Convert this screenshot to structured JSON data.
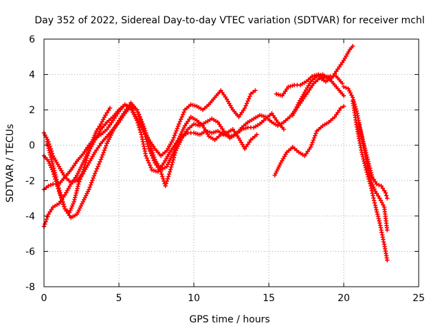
{
  "chart_data": {
    "type": "scatter",
    "title": "Day 352 of 2022, Sidereal Day-to-day VTEC variation (SDTVAR) for receiver mchl",
    "xlabel": "GPS time / hours",
    "ylabel": "SDTVAR / TECUs",
    "xlim": [
      0,
      25
    ],
    "ylim": [
      -8,
      6
    ],
    "xticks": [
      0,
      5,
      10,
      15,
      20,
      25
    ],
    "yticks": [
      -8,
      -6,
      -4,
      -2,
      0,
      2,
      4,
      6
    ],
    "grid": true,
    "marker": "+",
    "color": "#ff0000",
    "series": [
      {
        "x": [
          0,
          0.3,
          0.6,
          1.0,
          1.4,
          1.8,
          2.2,
          2.6,
          3.0,
          3.4,
          3.8,
          4.2,
          4.6,
          5.0,
          5.4,
          5.8,
          6.2,
          6.6,
          7.0,
          7.4,
          7.8,
          8.2,
          8.6,
          9.0,
          9.4,
          9.8,
          10.2,
          10.6,
          11.0,
          11.4,
          11.8,
          12.2,
          12.6,
          13.0,
          13.4,
          13.8,
          14.1
        ],
        "y": [
          -4.6,
          -3.9,
          -3.5,
          -3.3,
          -2.8,
          -2.2,
          -1.7,
          -1.0,
          -0.3,
          0.3,
          0.9,
          1.3,
          1.6,
          2.0,
          2.3,
          2.1,
          1.5,
          0.9,
          0.3,
          -0.2,
          -0.6,
          -0.3,
          0.3,
          1.2,
          2.0,
          2.3,
          2.2,
          2.0,
          2.3,
          2.7,
          3.1,
          2.6,
          2.0,
          1.6,
          2.1,
          2.9,
          3.1
        ]
      },
      {
        "x": [
          0,
          0.3,
          0.6,
          1.0,
          1.4,
          1.8,
          2.2,
          2.6,
          3.0,
          3.4,
          3.8,
          4.2,
          4.6,
          5.0,
          5.4,
          5.8,
          6.2,
          6.5,
          6.8,
          7.2,
          7.6,
          8.0,
          8.4,
          8.8,
          9.2,
          9.6,
          10.0,
          10.4,
          10.8,
          11.2,
          11.6,
          12.0,
          12.4,
          12.8,
          13.2,
          13.6,
          14.0,
          14.4,
          14.8,
          15.2,
          15.6,
          16.0,
          16.4,
          16.8,
          17.2,
          17.6,
          18.0,
          18.4,
          18.8,
          19.2,
          19.6,
          20.0,
          20.4,
          20.6
        ],
        "y": [
          -2.5,
          -2.3,
          -2.2,
          -2.2,
          -1.8,
          -1.4,
          -0.9,
          -0.5,
          0.0,
          0.4,
          0.6,
          0.9,
          1.4,
          1.9,
          2.3,
          2.1,
          1.4,
          0.6,
          -0.6,
          -1.4,
          -1.5,
          -1.0,
          -0.4,
          0.1,
          0.5,
          0.7,
          0.7,
          0.6,
          0.8,
          0.7,
          0.8,
          0.6,
          0.5,
          0.6,
          1.0,
          1.3,
          1.5,
          1.7,
          1.6,
          1.3,
          1.1,
          1.3,
          1.6,
          2.0,
          2.5,
          3.0,
          3.5,
          3.8,
          3.6,
          3.8,
          4.3,
          4.8,
          5.4,
          5.6
        ]
      },
      {
        "x": [
          0,
          0.3,
          0.6,
          1.0,
          1.4,
          1.8,
          2.2,
          2.6,
          3.0,
          3.4,
          3.8,
          4.2,
          4.6,
          5.0,
          5.4,
          5.8,
          6.2,
          6.6,
          7.0,
          7.4,
          7.8,
          8.1,
          8.4,
          8.8,
          9.2,
          9.6,
          10.0,
          10.4,
          10.8,
          11.2,
          11.6,
          12.0,
          12.4,
          12.8,
          13.2,
          13.6,
          14.0,
          14.4,
          14.8,
          15.2,
          15.6,
          16.0
        ],
        "y": [
          0.7,
          0.2,
          -0.6,
          -1.2,
          -1.8,
          -2.1,
          -2.0,
          -1.6,
          -1.0,
          -0.4,
          0.1,
          0.5,
          0.9,
          1.3,
          1.8,
          2.2,
          2.0,
          1.0,
          -0.2,
          -1.0,
          -1.5,
          -2.3,
          -1.5,
          -0.3,
          0.4,
          0.9,
          1.2,
          1.1,
          1.3,
          1.5,
          1.3,
          0.8,
          0.4,
          0.6,
          0.9,
          1.0,
          1.0,
          1.2,
          1.5,
          1.8,
          1.3,
          0.9
        ]
      },
      {
        "x": [
          0,
          0.3,
          0.6,
          1.0,
          1.4,
          1.8,
          2.2,
          2.6,
          3.0,
          3.4,
          3.8,
          4.2,
          4.6,
          5.0,
          5.4,
          5.8,
          6.2,
          6.6,
          7.0,
          7.4,
          7.8,
          8.2,
          8.6,
          9.0,
          9.4,
          9.8,
          10.2,
          10.6,
          11.0,
          11.4,
          11.8,
          12.2,
          12.6,
          13.0,
          13.4,
          13.8,
          14.2
        ],
        "y": [
          -0.6,
          -0.9,
          -1.5,
          -2.6,
          -3.6,
          -4.1,
          -3.9,
          -3.2,
          -2.5,
          -1.6,
          -0.8,
          0.1,
          0.8,
          1.4,
          1.9,
          2.4,
          2.0,
          1.2,
          0.2,
          -0.8,
          -1.4,
          -1.2,
          -0.5,
          0.4,
          1.1,
          1.6,
          1.4,
          1.1,
          0.5,
          0.3,
          0.6,
          0.7,
          0.9,
          0.4,
          -0.2,
          0.3,
          0.6
        ]
      },
      {
        "x": [
          0.2,
          0.5,
          0.8,
          1.1,
          1.4,
          1.7,
          2.0,
          2.3,
          2.6,
          2.9,
          3.2,
          3.5,
          3.8,
          4.1,
          4.4
        ],
        "y": [
          0.2,
          -0.8,
          -1.8,
          -2.8,
          -3.6,
          -3.8,
          -3.2,
          -2.2,
          -1.5,
          -0.6,
          0.2,
          0.8,
          1.2,
          1.7,
          2.1
        ]
      },
      {
        "x": [
          15.5,
          15.9,
          16.3,
          16.7,
          17.1,
          17.5,
          17.9,
          18.3,
          18.7,
          19.1,
          19.5,
          19.9
        ],
        "y": [
          2.9,
          2.8,
          3.3,
          3.4,
          3.4,
          3.6,
          3.9,
          4.0,
          3.8,
          3.9,
          3.9,
          3.5
        ]
      },
      {
        "x": [
          15.4,
          15.8,
          16.2,
          16.6,
          17.0,
          17.4,
          17.8,
          18.2,
          18.6,
          19.0,
          19.4,
          19.8,
          20.0
        ],
        "y": [
          -1.7,
          -1.0,
          -0.4,
          -0.1,
          -0.4,
          -0.6,
          -0.1,
          0.8,
          1.1,
          1.3,
          1.6,
          2.1,
          2.2
        ]
      },
      {
        "x": [
          16.6,
          17.0,
          17.4,
          17.8,
          18.2,
          18.6,
          19.0,
          19.4,
          19.8,
          20.0
        ],
        "y": [
          1.7,
          2.4,
          3.0,
          3.6,
          3.9,
          4.0,
          3.8,
          3.4,
          3.0,
          2.8
        ]
      },
      {
        "x": [
          20.0,
          20.3,
          20.6,
          20.9,
          21.2,
          21.5,
          21.8,
          22.1,
          22.4,
          22.7,
          22.9
        ],
        "y": [
          3.3,
          3.2,
          2.7,
          1.8,
          0.5,
          -0.8,
          -2.0,
          -2.6,
          -3.0,
          -3.5,
          -4.8
        ]
      },
      {
        "x": [
          20.6,
          20.9,
          21.2,
          21.5,
          21.8,
          22.1,
          22.4,
          22.7,
          22.9
        ],
        "y": [
          2.5,
          0.9,
          -0.4,
          -1.4,
          -2.3,
          -3.4,
          -4.4,
          -5.6,
          -6.5
        ]
      },
      {
        "x": [
          21.0,
          21.3,
          21.6,
          21.9,
          22.2,
          22.5,
          22.8,
          22.9
        ],
        "y": [
          1.2,
          0.2,
          -0.8,
          -1.8,
          -2.2,
          -2.3,
          -2.7,
          -3.0
        ]
      }
    ]
  }
}
